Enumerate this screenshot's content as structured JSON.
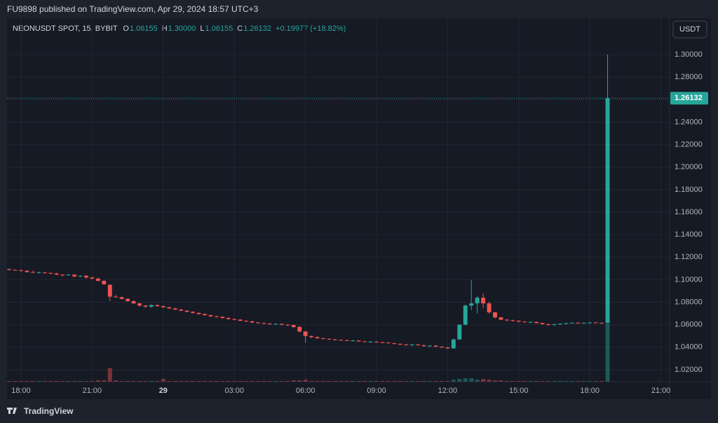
{
  "chart_data": {
    "type": "candlestick",
    "header": "FU9898 published on TradingView.com, Apr 29, 2024 18:57 UTC+3",
    "symbol": "NEONUSDT SPOT, 15, BYBIT",
    "legend": [
      [
        "O",
        "1.06155"
      ],
      [
        "H",
        "1.30000"
      ],
      [
        "L",
        "1.06155"
      ],
      [
        "C",
        "1.26132"
      ]
    ],
    "change": "+0.19977 (+18.82%)",
    "currency": "USDT",
    "last_price": {
      "value": 1.26132,
      "label": "1.26132"
    },
    "brand": "TradingView",
    "up_color": "#26a69a",
    "down_color": "#ef5350",
    "grid": true,
    "ylim": [
      1.0094,
      1.3324
    ],
    "yticks": [
      {
        "value": 1.02,
        "label": "1.02000"
      },
      {
        "value": 1.04,
        "label": "1.04000"
      },
      {
        "value": 1.06,
        "label": "1.06000"
      },
      {
        "value": 1.08,
        "label": "1.08000"
      },
      {
        "value": 1.1,
        "label": "1.10000"
      },
      {
        "value": 1.12,
        "label": "1.12000"
      },
      {
        "value": 1.14,
        "label": "1.14000"
      },
      {
        "value": 1.16,
        "label": "1.16000"
      },
      {
        "value": 1.18,
        "label": "1.18000"
      },
      {
        "value": 1.2,
        "label": "1.20000"
      },
      {
        "value": 1.22,
        "label": "1.22000"
      },
      {
        "value": 1.24,
        "label": "1.24000"
      },
      {
        "value": 1.26,
        "label": "1.26000"
      },
      {
        "value": 1.28,
        "label": "1.28000"
      },
      {
        "value": 1.3,
        "label": "1.30000"
      }
    ],
    "xlim": [
      -0.37,
      111.47
    ],
    "xticks": [
      {
        "value": 2,
        "label": "18:00"
      },
      {
        "value": 14,
        "label": "21:00"
      },
      {
        "value": 26,
        "label": "29"
      },
      {
        "value": 38,
        "label": "03:00"
      },
      {
        "value": 50,
        "label": "06:00"
      },
      {
        "value": 62,
        "label": "09:00"
      },
      {
        "value": 74,
        "label": "12:00"
      },
      {
        "value": 86,
        "label": "15:00"
      },
      {
        "value": 98,
        "label": "18:00"
      },
      {
        "value": 110,
        "label": "21:00"
      }
    ],
    "candles": [
      [
        1.1095,
        1.11,
        1.108,
        1.1088
      ],
      [
        1.1088,
        1.109,
        1.108,
        1.1085
      ],
      [
        1.1085,
        1.109,
        1.107,
        1.108
      ],
      [
        1.108,
        1.1085,
        1.1065,
        1.1068
      ],
      [
        1.1068,
        1.108,
        1.106,
        1.1062
      ],
      [
        1.1062,
        1.1072,
        1.1055,
        1.1066
      ],
      [
        1.1066,
        1.107,
        1.1055,
        1.106
      ],
      [
        1.106,
        1.1065,
        1.105,
        1.1055
      ],
      [
        1.1055,
        1.1062,
        1.104,
        1.1045
      ],
      [
        1.1045,
        1.105,
        1.103,
        1.104
      ],
      [
        1.104,
        1.105,
        1.1035,
        1.1045
      ],
      [
        1.1045,
        1.105,
        1.102,
        1.103
      ],
      [
        1.103,
        1.104,
        1.1025,
        1.1035
      ],
      [
        1.1035,
        1.104,
        1.101,
        1.102
      ],
      [
        1.102,
        1.1025,
        1.1005,
        1.101
      ],
      [
        1.101,
        1.102,
        1.0985,
        1.099
      ],
      [
        1.099,
        1.0995,
        1.0955,
        1.096
      ],
      [
        1.0955,
        1.096,
        1.081,
        1.085
      ],
      [
        1.085,
        1.0865,
        1.084,
        1.0845
      ],
      [
        1.0845,
        1.085,
        1.0825,
        1.083
      ],
      [
        1.083,
        1.0835,
        1.0805,
        1.081
      ],
      [
        1.081,
        1.0815,
        1.0785,
        1.079
      ],
      [
        1.079,
        1.0795,
        1.076,
        1.077
      ],
      [
        1.077,
        1.0775,
        1.075,
        1.076
      ],
      [
        1.076,
        1.078,
        1.075,
        1.0775
      ],
      [
        1.0775,
        1.078,
        1.076,
        1.0765
      ],
      [
        1.0765,
        1.077,
        1.075,
        1.0755
      ],
      [
        1.0755,
        1.076,
        1.074,
        1.0745
      ],
      [
        1.0745,
        1.075,
        1.073,
        1.0735
      ],
      [
        1.0735,
        1.074,
        1.072,
        1.0725
      ],
      [
        1.0725,
        1.073,
        1.071,
        1.0715
      ],
      [
        1.0715,
        1.072,
        1.07,
        1.0705
      ],
      [
        1.0705,
        1.071,
        1.069,
        1.0695
      ],
      [
        1.0695,
        1.07,
        1.068,
        1.0685
      ],
      [
        1.0685,
        1.069,
        1.067,
        1.0675
      ],
      [
        1.0675,
        1.068,
        1.0665,
        1.067
      ],
      [
        1.067,
        1.0675,
        1.0655,
        1.066
      ],
      [
        1.066,
        1.0665,
        1.0645,
        1.065
      ],
      [
        1.065,
        1.0655,
        1.064,
        1.0645
      ],
      [
        1.0645,
        1.065,
        1.063,
        1.0635
      ],
      [
        1.0635,
        1.064,
        1.0625,
        1.063
      ],
      [
        1.063,
        1.0635,
        1.0615,
        1.062
      ],
      [
        1.062,
        1.0625,
        1.061,
        1.0615
      ],
      [
        1.0615,
        1.062,
        1.0605,
        1.061
      ],
      [
        1.061,
        1.0615,
        1.06,
        1.0605
      ],
      [
        1.0605,
        1.0612,
        1.0598,
        1.0608
      ],
      [
        1.0608,
        1.0612,
        1.0595,
        1.06
      ],
      [
        1.06,
        1.0605,
        1.059,
        1.0598
      ],
      [
        1.0598,
        1.06,
        1.057,
        1.058
      ],
      [
        1.058,
        1.059,
        1.053,
        1.054
      ],
      [
        1.054,
        1.0545,
        1.044,
        1.05
      ],
      [
        1.05,
        1.0505,
        1.048,
        1.049
      ],
      [
        1.049,
        1.0495,
        1.0475,
        1.048
      ],
      [
        1.048,
        1.0485,
        1.047,
        1.0475
      ],
      [
        1.0475,
        1.048,
        1.0465,
        1.047
      ],
      [
        1.047,
        1.0475,
        1.046,
        1.0465
      ],
      [
        1.0465,
        1.047,
        1.0458,
        1.0462
      ],
      [
        1.0462,
        1.0468,
        1.0455,
        1.0458
      ],
      [
        1.0458,
        1.0465,
        1.0452,
        1.046
      ],
      [
        1.046,
        1.0462,
        1.0448,
        1.0452
      ],
      [
        1.0452,
        1.0458,
        1.0445,
        1.0448
      ],
      [
        1.0448,
        1.0455,
        1.0442,
        1.045
      ],
      [
        1.045,
        1.0452,
        1.044,
        1.0444
      ],
      [
        1.0444,
        1.045,
        1.0438,
        1.0442
      ],
      [
        1.0442,
        1.0446,
        1.0432,
        1.0436
      ],
      [
        1.0436,
        1.044,
        1.0425,
        1.043
      ],
      [
        1.043,
        1.0435,
        1.042,
        1.0425
      ],
      [
        1.0425,
        1.043,
        1.0415,
        1.042
      ],
      [
        1.042,
        1.0428,
        1.0412,
        1.0424
      ],
      [
        1.0424,
        1.043,
        1.0415,
        1.0418
      ],
      [
        1.0418,
        1.0422,
        1.0405,
        1.041
      ],
      [
        1.041,
        1.0418,
        1.0402,
        1.0414
      ],
      [
        1.0414,
        1.0418,
        1.04,
        1.0405
      ],
      [
        1.0405,
        1.041,
        1.0392,
        1.0398
      ],
      [
        1.0398,
        1.0402,
        1.0385,
        1.039
      ],
      [
        1.039,
        1.0475,
        1.0385,
        1.047
      ],
      [
        1.047,
        1.0605,
        1.0465,
        1.06
      ],
      [
        1.06,
        1.078,
        1.0595,
        1.077
      ],
      [
        1.077,
        1.1,
        1.073,
        1.079
      ],
      [
        1.079,
        1.0855,
        1.07,
        1.084
      ],
      [
        1.084,
        1.088,
        1.075,
        1.079
      ],
      [
        1.079,
        1.0805,
        1.07,
        1.071
      ],
      [
        1.071,
        1.0715,
        1.0655,
        1.0665
      ],
      [
        1.0665,
        1.067,
        1.064,
        1.0645
      ],
      [
        1.0645,
        1.065,
        1.063,
        1.064
      ],
      [
        1.064,
        1.0645,
        1.0628,
        1.0635
      ],
      [
        1.0635,
        1.064,
        1.062,
        1.0628
      ],
      [
        1.0628,
        1.0632,
        1.0618,
        1.0622
      ],
      [
        1.0622,
        1.063,
        1.0615,
        1.0625
      ],
      [
        1.0625,
        1.0628,
        1.061,
        1.0615
      ],
      [
        1.0615,
        1.062,
        1.06,
        1.0605
      ],
      [
        1.0605,
        1.061,
        1.0592,
        1.0598
      ],
      [
        1.0598,
        1.0608,
        1.059,
        1.0604
      ],
      [
        1.0604,
        1.0612,
        1.0598,
        1.061
      ],
      [
        1.061,
        1.0618,
        1.0602,
        1.0615
      ],
      [
        1.0615,
        1.0622,
        1.061,
        1.0618
      ],
      [
        1.0618,
        1.0622,
        1.061,
        1.0614
      ],
      [
        1.0614,
        1.062,
        1.0608,
        1.0617
      ],
      [
        1.0617,
        1.0625,
        1.0612,
        1.062
      ],
      [
        1.062,
        1.0624,
        1.0612,
        1.0616
      ],
      [
        1.0616,
        1.0622,
        1.0612,
        1.06155
      ],
      [
        1.06155,
        1.3,
        1.06155,
        1.26132
      ]
    ],
    "volume": [
      1,
      1,
      1,
      1,
      1,
      1,
      1,
      1,
      1,
      1,
      1,
      1,
      1,
      1,
      1,
      2,
      2,
      20,
      2,
      1,
      1,
      1,
      1,
      1,
      1,
      1,
      4,
      1,
      1,
      1,
      1,
      1,
      1,
      1,
      1,
      1,
      1,
      1,
      1,
      1,
      1,
      1,
      1,
      1,
      1,
      1,
      1,
      1,
      2,
      2,
      3,
      1,
      1,
      1,
      1,
      1,
      1,
      1,
      1,
      1,
      1,
      1,
      1,
      1,
      1,
      1,
      1,
      1,
      1,
      1,
      1,
      1,
      1,
      1,
      1,
      3,
      4,
      5,
      5,
      3,
      4,
      3,
      2,
      2,
      1,
      1,
      1,
      1,
      1,
      1,
      1,
      1,
      1,
      1,
      1,
      1,
      1,
      1,
      1,
      1,
      1,
      85
    ]
  }
}
